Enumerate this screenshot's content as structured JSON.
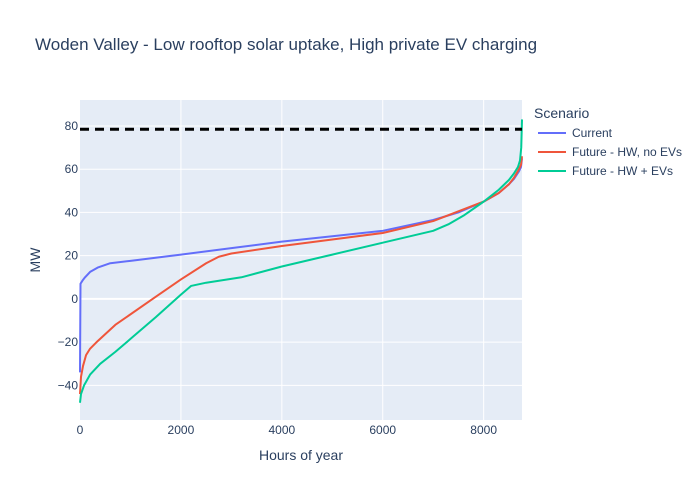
{
  "chart_data": {
    "type": "line",
    "title": "Woden Valley - Low rooftop solar uptake, High private EV charging",
    "xlabel": "Hours of year",
    "ylabel": "MW",
    "xlim": [
      0,
      8760
    ],
    "ylim": [
      -56,
      92
    ],
    "x_ticks": [
      0,
      2000,
      4000,
      6000,
      8000
    ],
    "y_ticks": [
      -40,
      -20,
      0,
      20,
      40,
      60,
      80
    ],
    "grid": true,
    "legend": {
      "title": "Scenario",
      "position": "right"
    },
    "reference_line": {
      "y": 78.5,
      "style": "dashed",
      "color": "#000000"
    },
    "series": [
      {
        "name": "Current",
        "color": "#636efa",
        "x": [
          0,
          10,
          50,
          100,
          200,
          350,
          600,
          1000,
          2000,
          3000,
          4000,
          5000,
          6000,
          7000,
          7500,
          8000,
          8300,
          8500,
          8600,
          8700,
          8740,
          8760
        ],
        "y": [
          -34,
          7,
          8.5,
          10,
          12.5,
          14.5,
          16.5,
          17.6,
          20.5,
          23.5,
          26.5,
          29,
          31.5,
          36.5,
          40,
          45,
          49,
          53,
          55.5,
          59,
          61,
          65
        ]
      },
      {
        "name": "Future - HW, no EVs",
        "color": "#ef553b",
        "x": [
          0,
          20,
          60,
          120,
          200,
          350,
          700,
          1500,
          2000,
          2500,
          2750,
          3000,
          4000,
          5000,
          6000,
          7000,
          7500,
          8000,
          8300,
          8500,
          8600,
          8700,
          8740,
          8760
        ],
        "y": [
          -44,
          -36,
          -31,
          -26,
          -23,
          -19.5,
          -12,
          1,
          9,
          16.5,
          19.5,
          21,
          24.5,
          27.5,
          30.5,
          36,
          40.5,
          45,
          49,
          53,
          56,
          60,
          62,
          66
        ]
      },
      {
        "name": "Future - HW + EVs",
        "color": "#00cc96",
        "x": [
          0,
          20,
          80,
          200,
          400,
          700,
          1000,
          1500,
          2000,
          2200,
          2500,
          3200,
          4000,
          5000,
          6000,
          7000,
          7300,
          7600,
          8000,
          8300,
          8500,
          8600,
          8680,
          8720,
          8745,
          8760
        ],
        "y": [
          -48,
          -44,
          -40,
          -35,
          -30,
          -24.5,
          -18.5,
          -8.5,
          2,
          6,
          7.5,
          10,
          15,
          20.5,
          26,
          31.5,
          34.5,
          38.5,
          45,
          50.5,
          55,
          58,
          61,
          64,
          70,
          83
        ]
      }
    ]
  }
}
